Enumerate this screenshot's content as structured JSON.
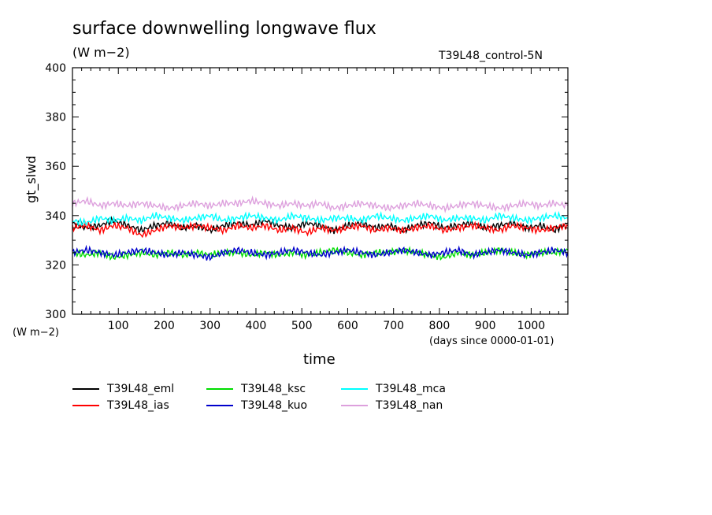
{
  "chart_data": {
    "type": "line",
    "title": "surface downwelling longwave flux",
    "subtitle": "(W m−2)",
    "run_label": "T39L48_control-5N",
    "xlabel": "time",
    "x_origin_label": "(days since 0000-01-01)",
    "ylabel": "gt_slwd",
    "y_units_label": "(W m−2)",
    "xlim": [
      0,
      1080
    ],
    "ylim": [
      300,
      400
    ],
    "x_ticks": [
      100,
      200,
      300,
      400,
      500,
      600,
      700,
      800,
      900,
      1000
    ],
    "y_ticks": [
      300,
      320,
      340,
      360,
      380,
      400
    ],
    "grid": false,
    "legend_position": "bottom",
    "x": [
      0,
      30,
      60,
      90,
      120,
      150,
      180,
      210,
      240,
      270,
      300,
      330,
      360,
      390,
      420,
      450,
      480,
      510,
      540,
      570,
      600,
      630,
      660,
      690,
      720,
      750,
      780,
      810,
      840,
      870,
      900,
      930,
      960,
      990,
      1020,
      1050,
      1080
    ],
    "series": [
      {
        "name": "T39L48_eml",
        "color": "#000000",
        "values": [
          337,
          335,
          336,
          338,
          336,
          334,
          336,
          337,
          335,
          336,
          334,
          336,
          337,
          336,
          338,
          336,
          335,
          337,
          336,
          334,
          336,
          337,
          335,
          336,
          334,
          336,
          337,
          335,
          336,
          337,
          335,
          336,
          337,
          335,
          336,
          334,
          337
        ]
      },
      {
        "name": "T39L48_ias",
        "color": "#ff0000",
        "values": [
          335,
          336,
          334,
          336,
          335,
          332,
          334,
          336,
          335,
          336,
          335,
          334,
          336,
          335,
          336,
          334,
          335,
          333,
          335,
          334,
          335,
          336,
          334,
          335,
          334,
          335,
          336,
          334,
          335,
          336,
          335,
          334,
          336,
          335,
          334,
          335,
          336
        ]
      },
      {
        "name": "T39L48_ksc",
        "color": "#00dd00",
        "values": [
          325,
          324,
          325,
          323,
          324,
          325,
          324,
          325,
          324,
          325,
          324,
          325,
          325,
          324,
          325,
          324,
          325,
          324,
          325,
          326,
          325,
          324,
          325,
          325,
          326,
          325,
          324,
          323,
          325,
          324,
          325,
          326,
          325,
          324,
          325,
          325,
          326
        ]
      },
      {
        "name": "T39L48_kuo",
        "color": "#0000cc",
        "values": [
          325,
          326,
          325,
          324,
          325,
          326,
          325,
          324,
          325,
          324,
          323,
          325,
          326,
          325,
          324,
          325,
          326,
          325,
          324,
          325,
          326,
          325,
          324,
          325,
          326,
          325,
          324,
          325,
          326,
          324,
          325,
          326,
          325,
          324,
          325,
          326,
          325
        ]
      },
      {
        "name": "T39L48_mca",
        "color": "#00ffff",
        "values": [
          338,
          337,
          339,
          338,
          339,
          338,
          340,
          339,
          338,
          339,
          340,
          338,
          339,
          340,
          339,
          338,
          340,
          339,
          338,
          339,
          339,
          338,
          340,
          339,
          338,
          339,
          340,
          338,
          339,
          339,
          338,
          340,
          339,
          338,
          339,
          340,
          339
        ]
      },
      {
        "name": "T39L48_nan",
        "color": "#dda0dd",
        "values": [
          345,
          346,
          344,
          345,
          344,
          345,
          344,
          343,
          344,
          345,
          344,
          345,
          345,
          346,
          345,
          344,
          345,
          344,
          345,
          343,
          344,
          345,
          344,
          343,
          344,
          345,
          344,
          343,
          344,
          345,
          344,
          343,
          344,
          345,
          344,
          345,
          344
        ]
      }
    ]
  }
}
